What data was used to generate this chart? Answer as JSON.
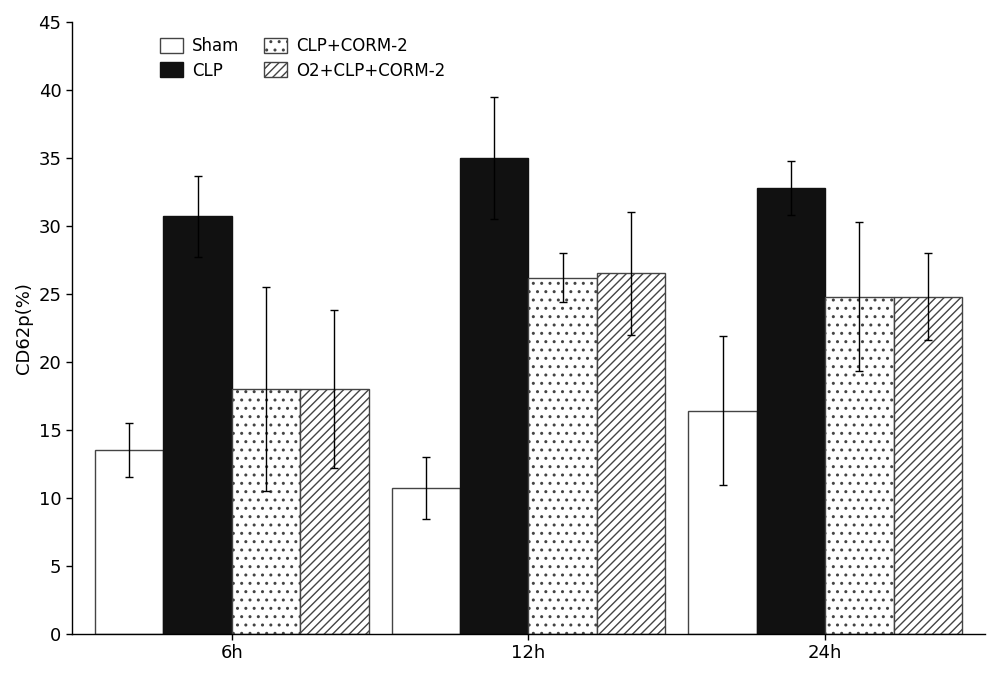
{
  "groups": [
    "6h",
    "12h",
    "24h"
  ],
  "series": [
    {
      "name": "Sham",
      "values": [
        13.5,
        10.7,
        16.4
      ],
      "errors": [
        2.0,
        2.3,
        5.5
      ],
      "facecolor": "white",
      "edgecolor": "#444444",
      "hatch": ""
    },
    {
      "name": "CLP",
      "values": [
        30.7,
        35.0,
        32.8
      ],
      "errors": [
        3.0,
        4.5,
        2.0
      ],
      "facecolor": "#111111",
      "edgecolor": "#111111",
      "hatch": ""
    },
    {
      "name": "CLP+CORM-2",
      "values": [
        18.0,
        26.2,
        24.8
      ],
      "errors": [
        7.5,
        1.8,
        5.5
      ],
      "facecolor": "white",
      "edgecolor": "#444444",
      "hatch": ".."
    },
    {
      "name": "O2+CLP+CORM-2",
      "values": [
        18.0,
        26.5,
        24.8
      ],
      "errors": [
        5.8,
        4.5,
        3.2
      ],
      "facecolor": "white",
      "edgecolor": "#444444",
      "hatch": "////"
    }
  ],
  "ylabel": "CD62p(%)",
  "ylim": [
    0,
    45
  ],
  "yticks": [
    0,
    5,
    10,
    15,
    20,
    25,
    30,
    35,
    40,
    45
  ],
  "bar_width": 0.15,
  "group_positions": [
    0.35,
    1.0,
    1.65
  ],
  "figsize": [
    10.0,
    6.77
  ],
  "dpi": 100,
  "background_color": "#ffffff",
  "fontsize": 13,
  "legend_fontsize": 12
}
